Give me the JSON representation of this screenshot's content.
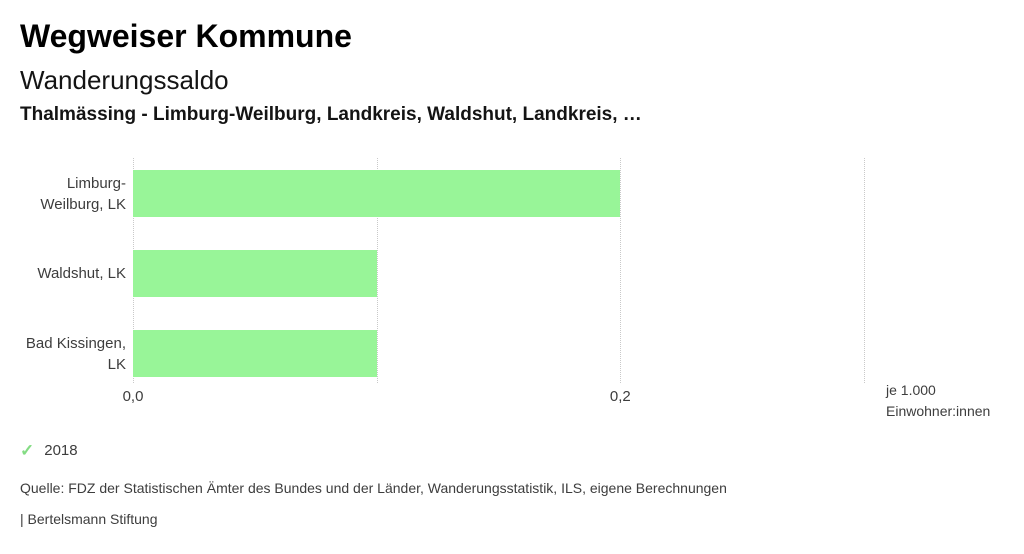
{
  "header": {
    "title": "Wegweiser Kommune",
    "subtitle": "Wanderungssaldo",
    "comparison_line": "Thalmässing - Limburg-Weilburg, Landkreis, Waldshut, Landkreis, …"
  },
  "chart_data": {
    "type": "bar",
    "orientation": "horizontal",
    "title": "Wanderungssaldo",
    "categories": [
      "Limburg-Weilburg, LK",
      "Waldshut, LK",
      "Bad Kissingen, LK"
    ],
    "category_display_lines": [
      [
        "Limburg-",
        "Weilburg, LK"
      ],
      [
        "Waldshut, LK"
      ],
      [
        "Bad Kissingen,",
        "LK"
      ]
    ],
    "values": [
      0.2,
      0.1,
      0.1
    ],
    "series_year": "2018",
    "xlim": [
      0,
      0.3
    ],
    "x_ticks": [
      {
        "label": "0,0",
        "value": 0
      },
      {
        "label": "0,2",
        "value": 0.2
      }
    ],
    "gridline_values": [
      0,
      0.1,
      0.2,
      0.3
    ],
    "unit_lines": [
      "je 1.000",
      "Einwohner:innen"
    ],
    "bar_color": "#98f598",
    "gridline_color": "#c9c9c9",
    "grid": true,
    "legend_position": "bottom-left"
  },
  "legend": {
    "check_icon": "✓",
    "check_color": "#84dc84",
    "year_label": "2018"
  },
  "footer": {
    "source": "Quelle: FDZ der Statistischen Ämter des Bundes und der Länder, Wanderungsstatistik, ILS, eigene Berechnungen",
    "attribution": "| Bertelsmann Stiftung"
  }
}
